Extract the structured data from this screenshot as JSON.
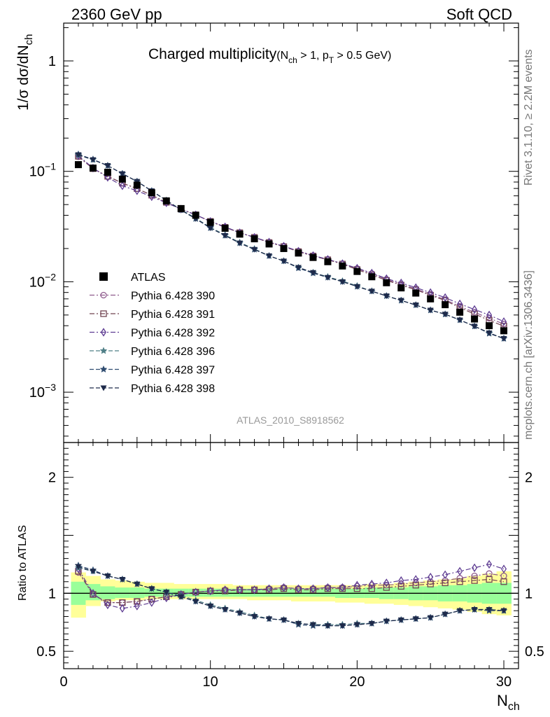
{
  "header": {
    "left": "2360 GeV pp",
    "right": "Soft QCD"
  },
  "side": {
    "rivet": "Rivet 3.1.10, ≥ 2.2M events",
    "mcplots": "mcplots.cern.ch [arXiv:1306.3436]"
  },
  "analysis_id": "ATLAS_2010_S8918562",
  "plot_title": {
    "main": "Charged multiplicity",
    "cut_open": "(N",
    "cut_sub1": "ch",
    "cut_mid": " > 1, p",
    "cut_sub2": "T",
    "cut_close": " > 0.5 GeV)"
  },
  "ylabel_main": {
    "pre": "1/σ dσ/dN",
    "sub": "ch"
  },
  "ylabel_ratio": "Ratio to ATLAS",
  "xlabel": {
    "main": "N",
    "sub": "ch"
  },
  "colors": {
    "data": "#000000",
    "p390": "#8e5a8c",
    "p391": "#714452",
    "p392": "#5e3c92",
    "p396": "#4f7f87",
    "p397": "#2f4c70",
    "p398": "#1e2a4a",
    "band_inner": "#99ff99",
    "band_outer": "#ffff99"
  },
  "chart_data": {
    "type": "scatter",
    "xlim": [
      0,
      31
    ],
    "main_ylim": [
      0.00035,
      2.2
    ],
    "main_yscale": "log",
    "ratio_ylim": [
      0.35,
      2.3
    ],
    "main_ticks": [
      {
        "value": 1,
        "base": "1",
        "exp": ""
      },
      {
        "value": 0.1,
        "base": "10",
        "exp": "−1"
      },
      {
        "value": 0.01,
        "base": "10",
        "exp": "−2"
      },
      {
        "value": 0.001,
        "base": "10",
        "exp": "−3"
      }
    ],
    "ratio_ticks": [
      {
        "value": 2,
        "label": "2"
      },
      {
        "value": 1,
        "label": "1"
      },
      {
        "value": 0.5,
        "label": "0.5"
      }
    ],
    "x_ticks": [
      {
        "value": 0,
        "label": "0"
      },
      {
        "value": 10,
        "label": "10"
      },
      {
        "value": 20,
        "label": "20"
      },
      {
        "value": 30,
        "label": "30"
      }
    ],
    "x": [
      1,
      2,
      3,
      4,
      5,
      6,
      7,
      8,
      9,
      10,
      11,
      12,
      13,
      14,
      15,
      16,
      17,
      18,
      19,
      20,
      21,
      22,
      23,
      24,
      25,
      26,
      27,
      28,
      29,
      30
    ],
    "data": {
      "name": "ATLAS",
      "values": [
        0.115,
        0.107,
        0.098,
        0.085,
        0.075,
        0.064,
        0.054,
        0.046,
        0.04,
        0.0345,
        0.0305,
        0.027,
        0.0245,
        0.022,
        0.02,
        0.0182,
        0.0166,
        0.0152,
        0.0139,
        0.0124,
        0.0111,
        0.0098,
        0.0088,
        0.0079,
        0.007,
        0.0062,
        0.0053,
        0.0046,
        0.004,
        0.0036
      ],
      "band_outer_lo": [
        0.79,
        0.89,
        0.93,
        0.94,
        0.94,
        0.95,
        0.95,
        0.95,
        0.95,
        0.95,
        0.95,
        0.95,
        0.94,
        0.94,
        0.94,
        0.93,
        0.93,
        0.93,
        0.92,
        0.92,
        0.91,
        0.91,
        0.9,
        0.89,
        0.88,
        0.87,
        0.86,
        0.84,
        0.82,
        0.81
      ],
      "band_outer_hi": [
        1.18,
        1.15,
        1.12,
        1.11,
        1.1,
        1.09,
        1.09,
        1.08,
        1.08,
        1.08,
        1.08,
        1.07,
        1.07,
        1.07,
        1.07,
        1.07,
        1.07,
        1.07,
        1.07,
        1.07,
        1.08,
        1.08,
        1.09,
        1.1,
        1.11,
        1.12,
        1.13,
        1.15,
        1.17,
        1.19
      ],
      "band_inner_lo": [
        0.9,
        0.94,
        0.95,
        0.96,
        0.96,
        0.97,
        0.97,
        0.97,
        0.97,
        0.97,
        0.97,
        0.97,
        0.97,
        0.97,
        0.97,
        0.97,
        0.97,
        0.97,
        0.96,
        0.96,
        0.96,
        0.95,
        0.95,
        0.94,
        0.94,
        0.93,
        0.93,
        0.92,
        0.91,
        0.91
      ],
      "band_inner_hi": [
        1.1,
        1.08,
        1.06,
        1.05,
        1.05,
        1.04,
        1.04,
        1.04,
        1.04,
        1.04,
        1.04,
        1.04,
        1.04,
        1.04,
        1.04,
        1.04,
        1.04,
        1.04,
        1.04,
        1.04,
        1.05,
        1.05,
        1.05,
        1.06,
        1.06,
        1.07,
        1.07,
        1.08,
        1.09,
        1.09
      ]
    },
    "series": [
      {
        "name": "Pythia 6.428 390",
        "key": "p390",
        "marker": "circle",
        "dash": "7,3,2,3",
        "ratio": [
          1.18,
          0.99,
          0.92,
          0.92,
          0.93,
          0.95,
          0.97,
          0.99,
          1.01,
          1.02,
          1.03,
          1.03,
          1.03,
          1.04,
          1.05,
          1.04,
          1.04,
          1.05,
          1.05,
          1.06,
          1.07,
          1.07,
          1.08,
          1.09,
          1.1,
          1.11,
          1.13,
          1.15,
          1.17,
          1.15
        ]
      },
      {
        "name": "Pythia 6.428 391",
        "key": "p391",
        "marker": "square",
        "dash": "7,3,2,3",
        "ratio": [
          1.19,
          0.99,
          0.92,
          0.92,
          0.93,
          0.95,
          0.97,
          0.99,
          1.01,
          1.02,
          1.02,
          1.03,
          1.03,
          1.03,
          1.04,
          1.03,
          1.03,
          1.04,
          1.04,
          1.04,
          1.04,
          1.05,
          1.06,
          1.07,
          1.08,
          1.09,
          1.1,
          1.11,
          1.12,
          1.1
        ]
      },
      {
        "name": "Pythia 6.428 392",
        "key": "p392",
        "marker": "diamond",
        "dash": "7,3,2,3",
        "ratio": [
          1.21,
          1.0,
          0.9,
          0.87,
          0.89,
          0.92,
          0.96,
          0.99,
          1.01,
          1.02,
          1.03,
          1.03,
          1.03,
          1.04,
          1.05,
          1.04,
          1.04,
          1.05,
          1.05,
          1.07,
          1.08,
          1.09,
          1.11,
          1.12,
          1.14,
          1.16,
          1.19,
          1.22,
          1.25,
          1.21
        ]
      },
      {
        "name": "Pythia 6.428 396",
        "key": "p396",
        "marker": "star",
        "dash": "6,3",
        "ratio": [
          1.22,
          1.19,
          1.15,
          1.12,
          1.08,
          1.04,
          1.01,
          0.98,
          0.94,
          0.9,
          0.87,
          0.84,
          0.81,
          0.78,
          0.77,
          0.74,
          0.73,
          0.73,
          0.73,
          0.74,
          0.74,
          0.76,
          0.77,
          0.78,
          0.79,
          0.82,
          0.85,
          0.86,
          0.86,
          0.85
        ]
      },
      {
        "name": "Pythia 6.428 397",
        "key": "p397",
        "marker": "star",
        "dash": "6,3",
        "ratio": [
          1.24,
          1.2,
          1.15,
          1.12,
          1.08,
          1.04,
          1.01,
          0.97,
          0.93,
          0.89,
          0.86,
          0.83,
          0.8,
          0.78,
          0.77,
          0.73,
          0.72,
          0.72,
          0.72,
          0.73,
          0.74,
          0.76,
          0.77,
          0.78,
          0.79,
          0.82,
          0.85,
          0.86,
          0.85,
          0.85
        ]
      },
      {
        "name": "Pythia 6.428 398",
        "key": "p398",
        "marker": "triangle-down",
        "dash": "6,3",
        "ratio": [
          1.23,
          1.19,
          1.15,
          1.12,
          1.08,
          1.04,
          1.01,
          0.97,
          0.93,
          0.89,
          0.86,
          0.83,
          0.8,
          0.78,
          0.77,
          0.74,
          0.73,
          0.72,
          0.72,
          0.73,
          0.74,
          0.76,
          0.77,
          0.78,
          0.79,
          0.82,
          0.85,
          0.86,
          0.86,
          0.85
        ]
      }
    ]
  }
}
